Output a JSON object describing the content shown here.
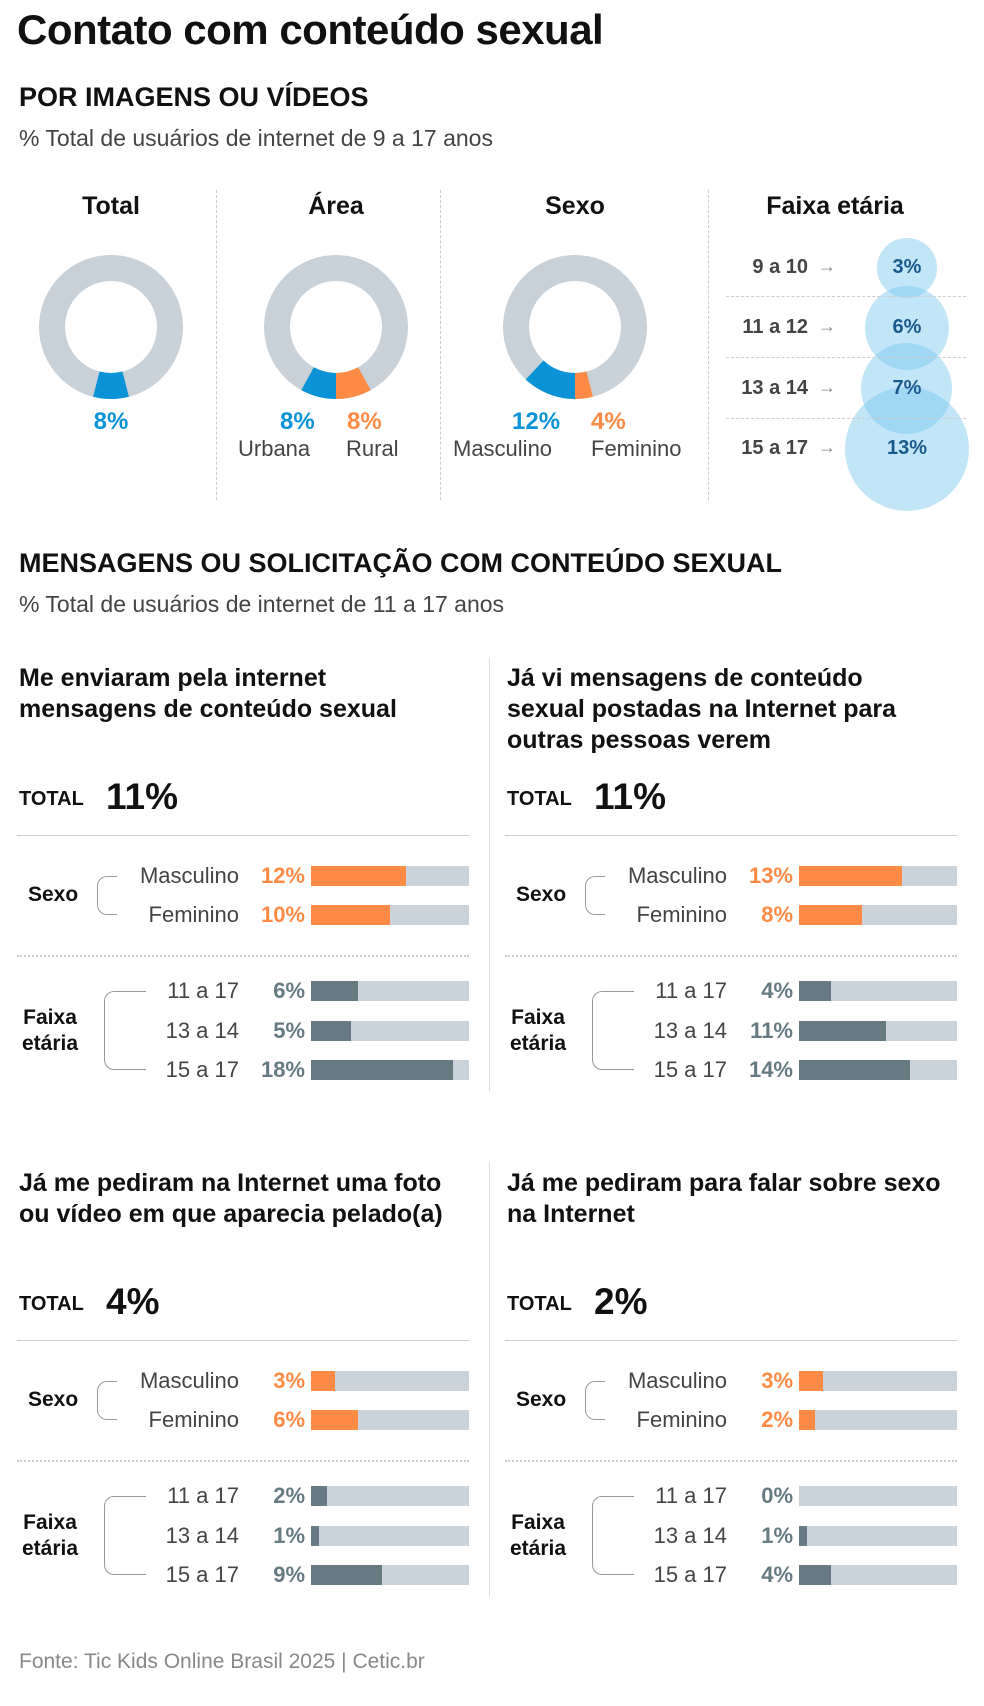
{
  "title": "Contato com conteúdo sexual",
  "section1": {
    "heading": "POR IMAGENS OU VÍDEOS",
    "subtitle": "% Total de usuários de internet de 9 a 17 anos",
    "total": {
      "label": "Total",
      "value": 8,
      "value_label": "8%"
    },
    "area": {
      "label": "Área",
      "items": [
        {
          "name": "Urbana",
          "value": 8,
          "value_label": "8%",
          "color": "#0a93d6"
        },
        {
          "name": "Rural",
          "value": 8,
          "value_label": "8%",
          "color": "#fd8a45"
        }
      ]
    },
    "sexo": {
      "label": "Sexo",
      "items": [
        {
          "name": "Masculino",
          "value": 12,
          "value_label": "12%",
          "color": "#0a93d6"
        },
        {
          "name": "Feminino",
          "value": 4,
          "value_label": "4%",
          "color": "#fd8a45"
        }
      ]
    },
    "faixa": {
      "label": "Faixa etária",
      "arrow": "→",
      "items": [
        {
          "name": "9 a 10",
          "value": 3,
          "value_label": "3%"
        },
        {
          "name": "11 a 12",
          "value": 6,
          "value_label": "6%"
        },
        {
          "name": "13 a 14",
          "value": 7,
          "value_label": "7%"
        },
        {
          "name": "15 a 17",
          "value": 13,
          "value_label": "13%"
        }
      ]
    }
  },
  "section2": {
    "heading": "MENSAGENS OU SOLICITAÇÃO COM CONTEÚDO SEXUAL",
    "subtitle": "% Total de usuários de internet de 11 a 17 anos",
    "total_label": "TOTAL",
    "sexo_label": "Sexo",
    "faixa_label_1": "Faixa",
    "faixa_label_2": "etária"
  },
  "chart_data": {
    "type": "bar",
    "xlim": [
      0,
      20
    ],
    "colors": {
      "sexo": "#fd8a45",
      "faixa": "#667a82",
      "track": "#cbd3da",
      "ring": "#c8d0d8"
    },
    "panels": [
      {
        "title": "Me enviaram pela internet mensagens de conteúdo sexual",
        "total": "11%",
        "sexo": [
          {
            "name": "Masculino",
            "value": 12,
            "label": "12%"
          },
          {
            "name": "Feminino",
            "value": 10,
            "label": "10%"
          }
        ],
        "faixa": [
          {
            "name": "11 a 17",
            "value": 6,
            "label": "6%"
          },
          {
            "name": "13 a 14",
            "value": 5,
            "label": "5%"
          },
          {
            "name": "15 a 17",
            "value": 18,
            "label": "18%"
          }
        ]
      },
      {
        "title": "Já vi mensagens de conteúdo sexual postadas na Internet para outras pessoas verem",
        "total": "11%",
        "sexo": [
          {
            "name": "Masculino",
            "value": 13,
            "label": "13%"
          },
          {
            "name": "Feminino",
            "value": 8,
            "label": "8%"
          }
        ],
        "faixa": [
          {
            "name": "11 a 17",
            "value": 4,
            "label": "4%"
          },
          {
            "name": "13 a 14",
            "value": 11,
            "label": "11%"
          },
          {
            "name": "15 a 17",
            "value": 14,
            "label": "14%"
          }
        ]
      },
      {
        "title": "Já me pediram na Internet uma foto ou vídeo em que aparecia pelado(a)",
        "total": "4%",
        "sexo": [
          {
            "name": "Masculino",
            "value": 3,
            "label": "3%"
          },
          {
            "name": "Feminino",
            "value": 6,
            "label": "6%"
          }
        ],
        "faixa": [
          {
            "name": "11 a 17",
            "value": 2,
            "label": "2%"
          },
          {
            "name": "13 a 14",
            "value": 1,
            "label": "1%"
          },
          {
            "name": "15 a 17",
            "value": 9,
            "label": "9%"
          }
        ]
      },
      {
        "title": "Já me pediram para falar sobre sexo na Internet",
        "total": "2%",
        "sexo": [
          {
            "name": "Masculino",
            "value": 3,
            "label": "3%"
          },
          {
            "name": "Feminino",
            "value": 2,
            "label": "2%"
          }
        ],
        "faixa": [
          {
            "name": "11 a 17",
            "value": 0,
            "label": "0%"
          },
          {
            "name": "13 a 14",
            "value": 1,
            "label": "1%"
          },
          {
            "name": "15 a 17",
            "value": 4,
            "label": "4%"
          }
        ]
      }
    ]
  },
  "footer": "Fonte: Tic Kids Online Brasil 2025 | Cetic.br"
}
